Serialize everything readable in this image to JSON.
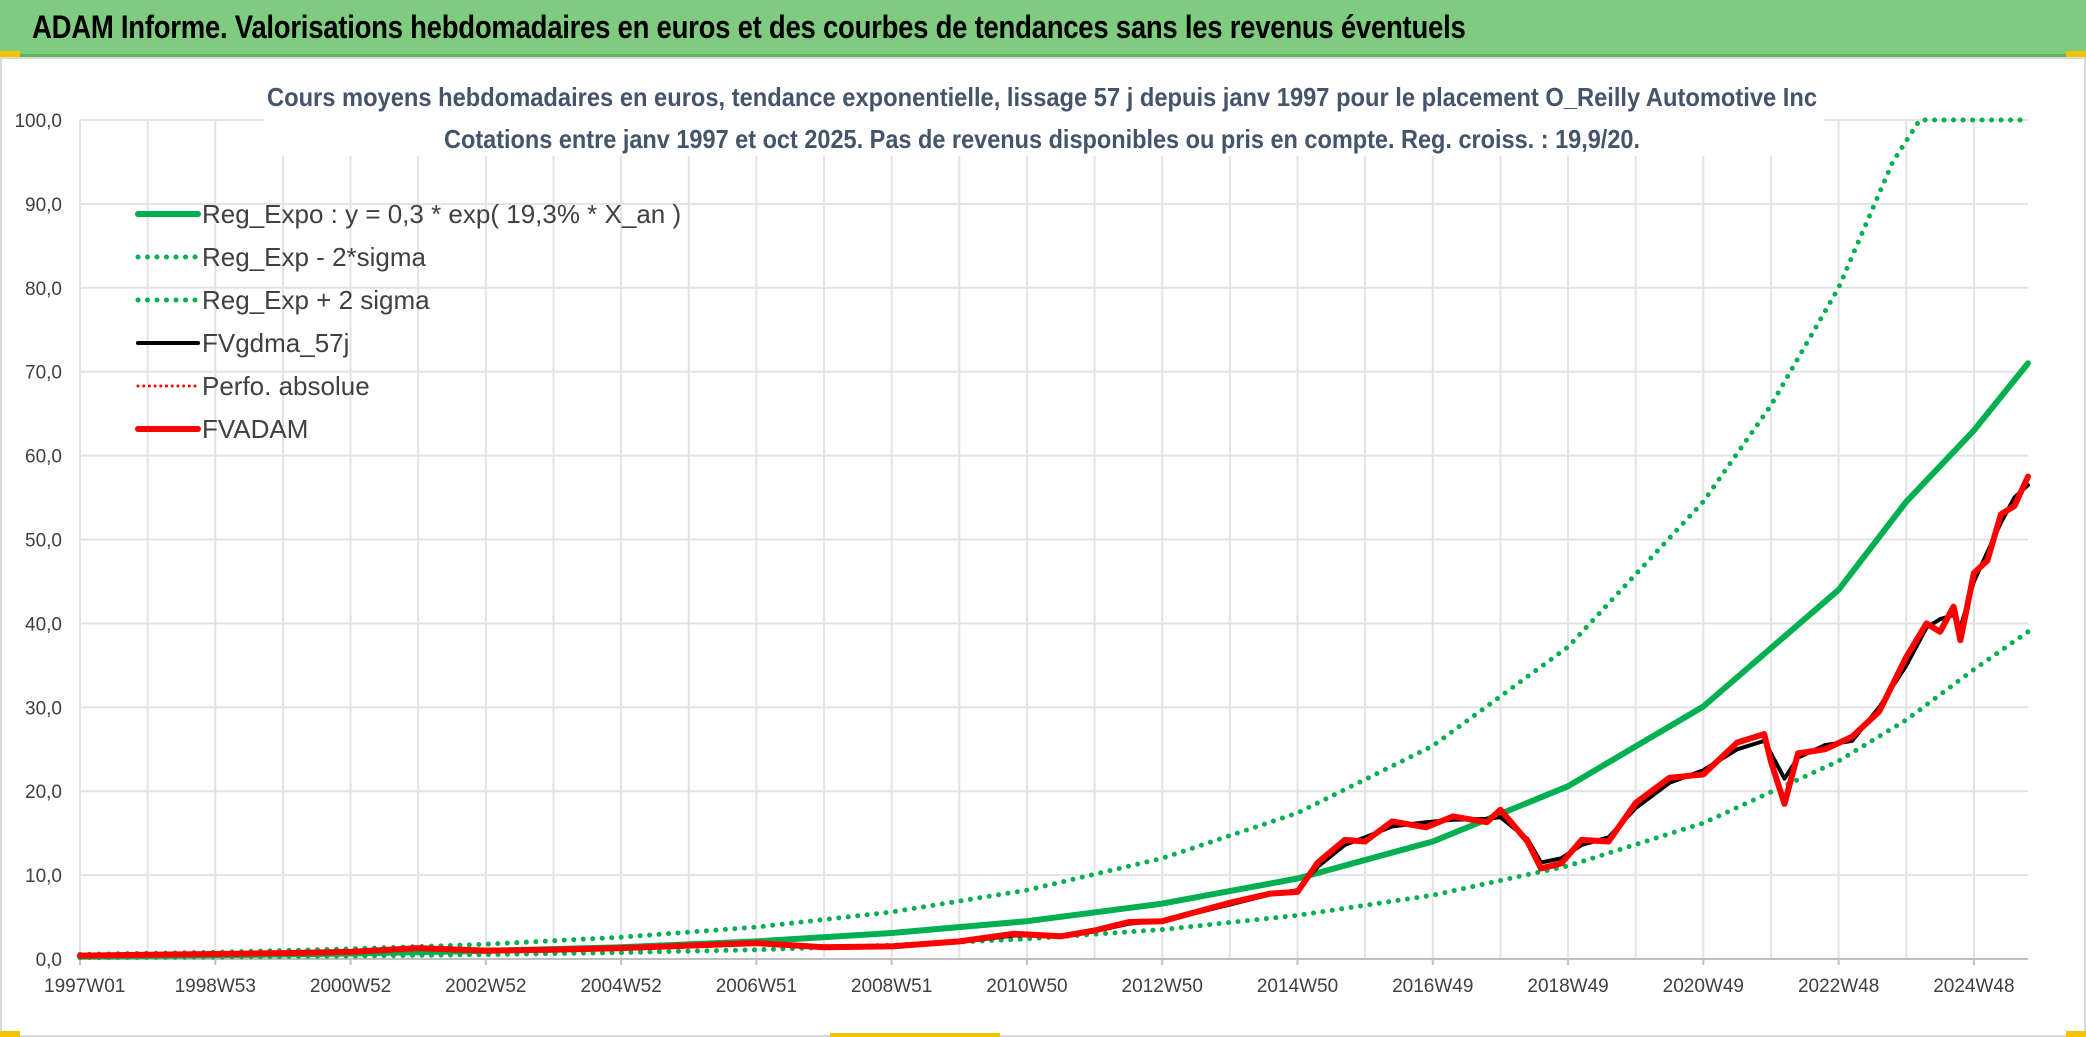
{
  "banner": {
    "title": "ADAM Informe. Valorisations hebdomadaires en euros et des courbes de tendances sans les revenus éventuels"
  },
  "colors": {
    "banner_bg": "#7fcb7f",
    "green": "#00b050",
    "red": "#ff0000",
    "black": "#000000",
    "accent_yellow": "#f2c300"
  },
  "chart_data": {
    "type": "line",
    "title": "Cours moyens hebdomadaires en euros, tendance exponentielle, lissage 57 j depuis janv 1997 pour le placement O_Reilly Automotive Inc",
    "subtitle": "Cotations entre janv 1997 et oct 2025. Pas de revenus disponibles ou pris en compte. Reg. croiss. : 19,9/20.",
    "xlabel": "",
    "ylabel": "",
    "xlim": [
      1997.0,
      2025.8
    ],
    "ylim": [
      0,
      100
    ],
    "y_ticks": [
      "0,0",
      "10,0",
      "20,0",
      "30,0",
      "40,0",
      "50,0",
      "60,0",
      "70,0",
      "80,0",
      "90,0",
      "100,0"
    ],
    "x_ticks": [
      {
        "label": "1997W01",
        "t": 1997.0
      },
      {
        "label": "1998W53",
        "t": 1999.0
      },
      {
        "label": "2000W52",
        "t": 2001.0
      },
      {
        "label": "2002W52",
        "t": 2003.0
      },
      {
        "label": "2004W52",
        "t": 2005.0
      },
      {
        "label": "2006W51",
        "t": 2007.0
      },
      {
        "label": "2008W51",
        "t": 2009.0
      },
      {
        "label": "2010W50",
        "t": 2011.0
      },
      {
        "label": "2012W50",
        "t": 2013.0
      },
      {
        "label": "2014W50",
        "t": 2015.0
      },
      {
        "label": "2016W49",
        "t": 2017.0
      },
      {
        "label": "2018W49",
        "t": 2019.0
      },
      {
        "label": "2020W49",
        "t": 2021.0
      },
      {
        "label": "2022W48",
        "t": 2023.0
      },
      {
        "label": "2024W48",
        "t": 2025.0
      }
    ],
    "grid": true,
    "legend_position": "top-left",
    "legend": [
      {
        "name": "Reg_Expo : y = 0,3 * exp( 19,3% *  X_an )",
        "color": "#00b050",
        "style": "solid",
        "width": 6
      },
      {
        "name": "Reg_Exp - 2*sigma",
        "color": "#00b050",
        "style": "dotted",
        "width": 5
      },
      {
        "name": "Reg_Exp + 2 sigma",
        "color": "#00b050",
        "style": "dotted",
        "width": 5
      },
      {
        "name": "FVgdma_57j",
        "color": "#000000",
        "style": "solid",
        "width": 4
      },
      {
        "name": "Perfo. absolue",
        "color": "#ff0000",
        "style": "dotted",
        "width": 3
      },
      {
        "name": "FVADAM",
        "color": "#ff0000",
        "style": "solid",
        "width": 6
      }
    ],
    "series": [
      {
        "name": "Reg_Expo : y = 0,3 * exp( 19,3% *  X_an )",
        "points": [
          [
            1997.0,
            0.3
          ],
          [
            1999.0,
            0.44
          ],
          [
            2001.0,
            0.65
          ],
          [
            2003.0,
            0.96
          ],
          [
            2005.0,
            1.41
          ],
          [
            2007.0,
            2.1
          ],
          [
            2009.0,
            3.1
          ],
          [
            2011.0,
            4.5
          ],
          [
            2013.0,
            6.6
          ],
          [
            2015.0,
            9.6
          ],
          [
            2017.0,
            14.0
          ],
          [
            2019.0,
            20.6
          ],
          [
            2021.0,
            30.1
          ],
          [
            2023.0,
            44.0
          ],
          [
            2024.0,
            54.5
          ],
          [
            2025.0,
            63.0
          ],
          [
            2025.8,
            71.0
          ]
        ]
      },
      {
        "name": "Reg_Exp - 2*sigma",
        "points": [
          [
            1997.0,
            0.16
          ],
          [
            1999.0,
            0.24
          ],
          [
            2001.0,
            0.35
          ],
          [
            2003.0,
            0.52
          ],
          [
            2005.0,
            0.76
          ],
          [
            2007.0,
            1.1
          ],
          [
            2009.0,
            1.65
          ],
          [
            2011.0,
            2.4
          ],
          [
            2013.0,
            3.5
          ],
          [
            2015.0,
            5.2
          ],
          [
            2017.0,
            7.6
          ],
          [
            2019.0,
            11.1
          ],
          [
            2021.0,
            16.2
          ],
          [
            2023.0,
            23.6
          ],
          [
            2024.0,
            28.5
          ],
          [
            2025.0,
            34.5
          ],
          [
            2025.8,
            39.0
          ]
        ]
      },
      {
        "name": "Reg_Exp + 2 sigma",
        "points": [
          [
            1997.0,
            0.55
          ],
          [
            1999.0,
            0.8
          ],
          [
            2001.0,
            1.2
          ],
          [
            2003.0,
            1.75
          ],
          [
            2005.0,
            2.6
          ],
          [
            2007.0,
            3.8
          ],
          [
            2009.0,
            5.6
          ],
          [
            2011.0,
            8.2
          ],
          [
            2013.0,
            12.0
          ],
          [
            2015.0,
            17.4
          ],
          [
            2017.0,
            25.4
          ],
          [
            2019.0,
            37.2
          ],
          [
            2021.0,
            54.5
          ],
          [
            2022.0,
            66.0
          ],
          [
            2023.0,
            80.0
          ],
          [
            2023.8,
            95.0
          ],
          [
            2024.2,
            100.0
          ],
          [
            2025.8,
            100.0
          ]
        ]
      },
      {
        "name": "FVgdma_57j",
        "points": [
          [
            1997.0,
            0.4
          ],
          [
            1998.0,
            0.5
          ],
          [
            1999.0,
            0.6
          ],
          [
            2000.0,
            0.7
          ],
          [
            2001.0,
            0.85
          ],
          [
            2002.0,
            1.2
          ],
          [
            2003.0,
            1.0
          ],
          [
            2004.0,
            1.1
          ],
          [
            2005.0,
            1.2
          ],
          [
            2006.0,
            1.6
          ],
          [
            2007.0,
            1.8
          ],
          [
            2008.0,
            1.5
          ],
          [
            2009.0,
            1.5
          ],
          [
            2010.0,
            2.0
          ],
          [
            2010.8,
            2.8
          ],
          [
            2011.5,
            2.8
          ],
          [
            2012.0,
            3.3
          ],
          [
            2012.5,
            4.2
          ],
          [
            2013.0,
            4.6
          ],
          [
            2013.5,
            5.5
          ],
          [
            2014.0,
            6.5
          ],
          [
            2014.6,
            7.7
          ],
          [
            2015.0,
            8.2
          ],
          [
            2015.3,
            11.0
          ],
          [
            2015.7,
            13.6
          ],
          [
            2016.0,
            14.5
          ],
          [
            2016.4,
            15.8
          ],
          [
            2016.9,
            16.3
          ],
          [
            2017.3,
            16.6
          ],
          [
            2017.8,
            16.7
          ],
          [
            2018.0,
            16.9
          ],
          [
            2018.4,
            14.3
          ],
          [
            2018.6,
            11.5
          ],
          [
            2018.9,
            12.0
          ],
          [
            2019.2,
            13.6
          ],
          [
            2019.6,
            14.5
          ],
          [
            2020.0,
            18.0
          ],
          [
            2020.5,
            21.0
          ],
          [
            2021.0,
            22.5
          ],
          [
            2021.5,
            25.0
          ],
          [
            2021.9,
            26.0
          ],
          [
            2022.0,
            24.5
          ],
          [
            2022.2,
            21.5
          ],
          [
            2022.4,
            24.0
          ],
          [
            2022.8,
            25.5
          ],
          [
            2023.2,
            26.0
          ],
          [
            2023.6,
            30.0
          ],
          [
            2024.0,
            35.0
          ],
          [
            2024.3,
            39.5
          ],
          [
            2024.5,
            40.5
          ],
          [
            2024.7,
            41.0
          ],
          [
            2024.8,
            39.5
          ],
          [
            2025.0,
            45.0
          ],
          [
            2025.2,
            48.5
          ],
          [
            2025.4,
            52.0
          ],
          [
            2025.6,
            55.0
          ],
          [
            2025.8,
            56.5
          ]
        ]
      },
      {
        "name": "FVADAM",
        "points": [
          [
            1997.0,
            0.4
          ],
          [
            1998.0,
            0.5
          ],
          [
            1999.0,
            0.6
          ],
          [
            2000.0,
            0.7
          ],
          [
            2001.0,
            0.85
          ],
          [
            2002.0,
            1.3
          ],
          [
            2003.0,
            1.0
          ],
          [
            2004.0,
            1.1
          ],
          [
            2005.0,
            1.3
          ],
          [
            2006.0,
            1.6
          ],
          [
            2007.0,
            1.9
          ],
          [
            2008.0,
            1.4
          ],
          [
            2009.0,
            1.5
          ],
          [
            2010.0,
            2.1
          ],
          [
            2010.8,
            3.0
          ],
          [
            2011.5,
            2.7
          ],
          [
            2012.0,
            3.4
          ],
          [
            2012.5,
            4.4
          ],
          [
            2013.0,
            4.5
          ],
          [
            2013.5,
            5.6
          ],
          [
            2014.0,
            6.7
          ],
          [
            2014.6,
            7.8
          ],
          [
            2015.0,
            8.0
          ],
          [
            2015.3,
            11.5
          ],
          [
            2015.7,
            14.2
          ],
          [
            2016.0,
            14.0
          ],
          [
            2016.4,
            16.4
          ],
          [
            2016.9,
            15.7
          ],
          [
            2017.3,
            17.0
          ],
          [
            2017.8,
            16.3
          ],
          [
            2018.0,
            17.8
          ],
          [
            2018.4,
            14.0
          ],
          [
            2018.6,
            10.8
          ],
          [
            2018.9,
            11.4
          ],
          [
            2019.2,
            14.2
          ],
          [
            2019.6,
            14.0
          ],
          [
            2020.0,
            18.6
          ],
          [
            2020.5,
            21.6
          ],
          [
            2021.0,
            22.0
          ],
          [
            2021.5,
            25.8
          ],
          [
            2021.9,
            26.8
          ],
          [
            2022.0,
            23.5
          ],
          [
            2022.2,
            18.5
          ],
          [
            2022.4,
            24.5
          ],
          [
            2022.8,
            25.0
          ],
          [
            2023.2,
            26.5
          ],
          [
            2023.6,
            29.5
          ],
          [
            2024.0,
            36.0
          ],
          [
            2024.3,
            40.0
          ],
          [
            2024.5,
            39.0
          ],
          [
            2024.7,
            42.0
          ],
          [
            2024.8,
            38.0
          ],
          [
            2025.0,
            46.0
          ],
          [
            2025.2,
            47.5
          ],
          [
            2025.4,
            53.0
          ],
          [
            2025.6,
            54.0
          ],
          [
            2025.8,
            57.5
          ]
        ]
      }
    ]
  }
}
